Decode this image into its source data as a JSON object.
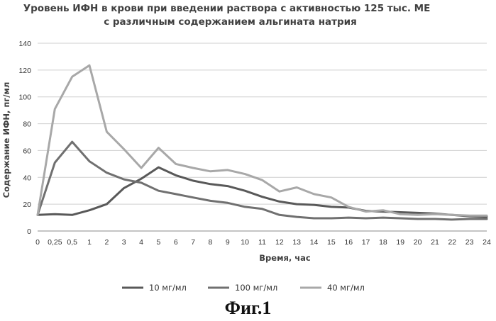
{
  "chart_data": {
    "type": "line",
    "title_line1": "Уровень ИФН в крови при введении раствора с активностью 125 тыс. МЕ",
    "title_line2": "с различным содержанием альгината натрия",
    "xlabel": "Время, час",
    "ylabel": "Содержание ИФН, пг/мл",
    "ylim": [
      0,
      140
    ],
    "y_ticks": [
      "0",
      "20",
      "40",
      "60",
      "80",
      "100",
      "120",
      "140"
    ],
    "categories": [
      "0",
      "0,25",
      "0,5",
      "1",
      "2",
      "3",
      "4",
      "5",
      "6",
      "7",
      "8",
      "9",
      "10",
      "11",
      "12",
      "13",
      "14",
      "15",
      "16",
      "17",
      "18",
      "19",
      "20",
      "21",
      "22",
      "23",
      "24"
    ],
    "grid": true,
    "legend_position": "bottom",
    "series": [
      {
        "name": "10 мг/мл",
        "color": "#595959",
        "values": [
          12,
          12.5,
          12,
          15.5,
          20,
          32,
          39,
          47.5,
          41.5,
          37.5,
          35,
          33.5,
          30,
          25.5,
          22,
          20,
          19.5,
          18,
          17.5,
          15,
          14.5,
          14,
          13.5,
          13,
          12,
          11,
          10.5
        ]
      },
      {
        "name": "100 мг/мл",
        "color": "#707070",
        "values": [
          12,
          51,
          66.5,
          52,
          43.5,
          38.5,
          36,
          30,
          27.5,
          25,
          22.5,
          21,
          18,
          16.5,
          12,
          10.5,
          9.5,
          9.5,
          10,
          9.5,
          10,
          9.5,
          9,
          9,
          8.5,
          9,
          9
        ]
      },
      {
        "name": "40 мг/мл",
        "color": "#a8a8a8",
        "values": [
          12,
          91,
          115,
          123.5,
          74,
          61,
          47,
          62,
          50,
          47,
          44.5,
          45.5,
          42.5,
          38,
          29.5,
          32.5,
          27.5,
          25,
          18,
          14.5,
          15.5,
          12.5,
          12,
          12.5,
          12,
          11.5,
          11.5
        ]
      }
    ]
  },
  "figure_caption": "Фиг.1"
}
